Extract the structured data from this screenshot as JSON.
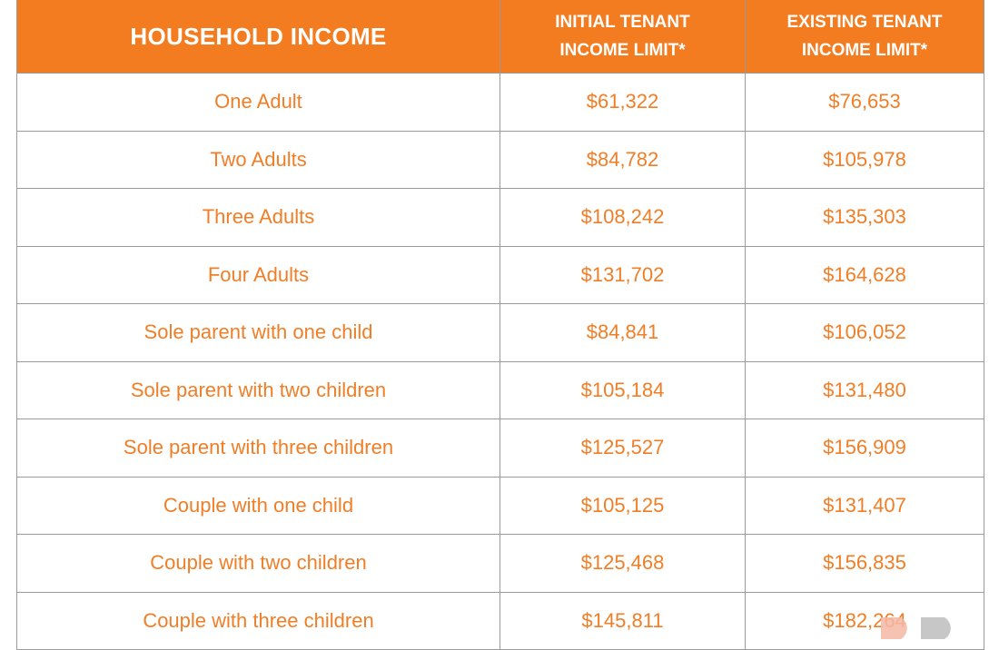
{
  "table": {
    "headers": [
      "HOUSEHOLD INCOME",
      "INITIAL TENANT INCOME LIMIT*",
      "EXISTING TENANT INCOME LIMIT*"
    ],
    "header_lines": [
      [
        "HOUSEHOLD INCOME"
      ],
      [
        "INITIAL TENANT",
        "INCOME LIMIT*"
      ],
      [
        "EXISTING TENANT",
        "INCOME LIMIT*"
      ]
    ],
    "rows": [
      [
        "One Adult",
        "$61,322",
        "$76,653"
      ],
      [
        "Two Adults",
        "$84,782",
        "$105,978"
      ],
      [
        "Three Adults",
        "$108,242",
        "$135,303"
      ],
      [
        "Four Adults",
        "$131,702",
        "$164,628"
      ],
      [
        "Sole parent with one child",
        "$84,841",
        "$106,052"
      ],
      [
        "Sole parent with two children",
        "$105,184",
        "$131,480"
      ],
      [
        "Sole parent with three children",
        "$125,527",
        "$156,909"
      ],
      [
        "Couple with one child",
        "$105,125",
        "$131,407"
      ],
      [
        "Couple with two children",
        "$125,468",
        "$156,835"
      ],
      [
        "Couple with three children",
        "$145,811",
        "$182,264"
      ]
    ]
  },
  "colors": {
    "header_bg": "#F47C20",
    "text": "#F07E26",
    "border": "#9a9a9a"
  },
  "watermark": {
    "icon": "logo-watermark"
  }
}
